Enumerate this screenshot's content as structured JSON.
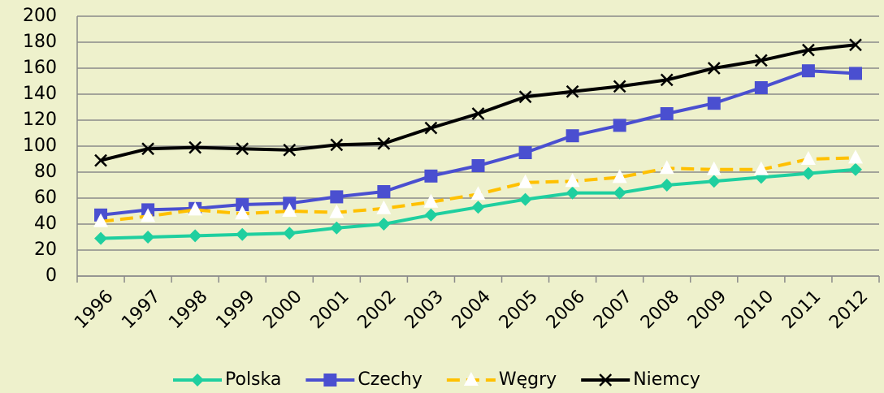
{
  "chart_data": {
    "type": "line",
    "categories": [
      "1996",
      "1997",
      "1998",
      "1999",
      "2000",
      "2001",
      "2002",
      "2003",
      "2004",
      "2005",
      "2006",
      "2007",
      "2008",
      "2009",
      "2010",
      "2011",
      "2012"
    ],
    "series": [
      {
        "name": "Polska",
        "color": "#1fcf9f",
        "marker": "diamond",
        "values": [
          29,
          30,
          31,
          32,
          33,
          37,
          40,
          47,
          53,
          59,
          64,
          64,
          70,
          73,
          76,
          79,
          82
        ]
      },
      {
        "name": "Czechy",
        "color": "#4a4fd0",
        "marker": "square",
        "values": [
          47,
          51,
          52,
          55,
          56,
          61,
          65,
          77,
          85,
          95,
          108,
          116,
          125,
          133,
          145,
          158,
          156
        ]
      },
      {
        "name": "Węgry",
        "color": "#ffc000",
        "marker": "triangle",
        "dash": true,
        "values": [
          42,
          46,
          51,
          48,
          50,
          49,
          52,
          57,
          63,
          72,
          73,
          76,
          83,
          82,
          82,
          90,
          91
        ]
      },
      {
        "name": "Niemcy",
        "color": "#000000",
        "marker": "x",
        "values": [
          89,
          98,
          99,
          98,
          97,
          101,
          102,
          114,
          125,
          138,
          142,
          146,
          151,
          160,
          166,
          174,
          178
        ]
      }
    ],
    "ylim": [
      0,
      200
    ],
    "yticks": [
      0,
      20,
      40,
      60,
      80,
      100,
      120,
      140,
      160,
      180,
      200
    ],
    "grid": true,
    "legend": "bottom"
  }
}
